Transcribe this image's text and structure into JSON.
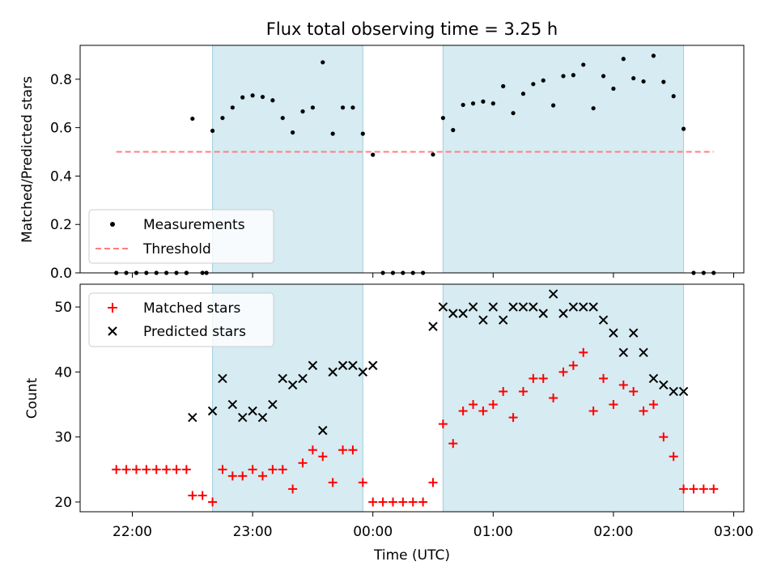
{
  "chart_data": {
    "type": "scatter",
    "title": "Flux total observing time = 3.25 h",
    "xlabel": "Time (UTC)",
    "x_ticks": [
      "22:00",
      "23:00",
      "00:00",
      "01:00",
      "02:00",
      "03:00"
    ],
    "shaded_intervals": [
      [
        "22:40",
        "23:55"
      ],
      [
        "00:35",
        "02:35"
      ]
    ],
    "threshold": {
      "name": "Threshold",
      "value": 0.5,
      "x_range": [
        "21:52",
        "02:50"
      ],
      "color": "#ff7f7f"
    },
    "panels": [
      {
        "ylabel": "Matched/Predicted stars",
        "ylim": [
          0,
          0.94
        ],
        "y_ticks": [
          "0.0",
          "0.2",
          "0.4",
          "0.6",
          "0.8"
        ],
        "legend_position": "lower-left",
        "series": [
          {
            "name": "Measurements",
            "marker": "dot",
            "color": "#000000",
            "points": [
              [
                "21:52",
                0.0
              ],
              [
                "21:57",
                0.0
              ],
              [
                "22:02",
                0.0
              ],
              [
                "22:07",
                0.0
              ],
              [
                "22:12",
                0.0
              ],
              [
                "22:17",
                0.0
              ],
              [
                "22:22",
                0.0
              ],
              [
                "22:27",
                0.0
              ],
              [
                "22:37",
                0.0
              ],
              [
                "22:27",
                0.0
              ],
              [
                "22:30",
                0.637
              ],
              [
                "22:35",
                0.0
              ],
              [
                "22:40",
                0.587
              ],
              [
                "22:45",
                0.64
              ],
              [
                "22:50",
                0.683
              ],
              [
                "22:55",
                0.725
              ],
              [
                "23:00",
                0.733
              ],
              [
                "23:05",
                0.727
              ],
              [
                "23:10",
                0.713
              ],
              [
                "23:15",
                0.64
              ],
              [
                "23:20",
                0.58
              ],
              [
                "23:25",
                0.667
              ],
              [
                "23:30",
                0.683
              ],
              [
                "23:35",
                0.87
              ],
              [
                "23:40",
                0.575
              ],
              [
                "23:45",
                0.683
              ],
              [
                "23:50",
                0.683
              ],
              [
                "23:55",
                0.575
              ],
              [
                "00:00",
                0.488
              ],
              [
                "00:05",
                0.0
              ],
              [
                "00:10",
                0.0
              ],
              [
                "00:15",
                0.0
              ],
              [
                "00:20",
                0.0
              ],
              [
                "00:25",
                0.0
              ],
              [
                "00:30",
                0.489
              ],
              [
                "00:35",
                0.64
              ],
              [
                "00:40",
                0.59
              ],
              [
                "00:45",
                0.694
              ],
              [
                "00:50",
                0.7
              ],
              [
                "00:55",
                0.708
              ],
              [
                "01:00",
                0.7
              ],
              [
                "01:05",
                0.771
              ],
              [
                "01:10",
                0.66
              ],
              [
                "01:15",
                0.74
              ],
              [
                "01:20",
                0.78
              ],
              [
                "01:25",
                0.795
              ],
              [
                "01:30",
                0.692
              ],
              [
                "01:35",
                0.813
              ],
              [
                "01:40",
                0.817
              ],
              [
                "01:45",
                0.86
              ],
              [
                "01:50",
                0.68
              ],
              [
                "01:55",
                0.813
              ],
              [
                "02:00",
                0.761
              ],
              [
                "02:05",
                0.884
              ],
              [
                "02:10",
                0.804
              ],
              [
                "02:15",
                0.791
              ],
              [
                "02:20",
                0.897
              ],
              [
                "02:25",
                0.789
              ],
              [
                "02:30",
                0.73
              ],
              [
                "02:35",
                0.595
              ],
              [
                "02:40",
                0.0
              ],
              [
                "02:45",
                0.0
              ],
              [
                "02:50",
                0.0
              ]
            ]
          }
        ]
      },
      {
        "ylabel": "Count",
        "ylim": [
          18.5,
          53.5
        ],
        "y_ticks": [
          "20",
          "30",
          "40",
          "50"
        ],
        "legend_position": "upper-left",
        "series": [
          {
            "name": "Matched stars",
            "marker": "plus",
            "color": "#ff0000",
            "points": [
              [
                "21:52",
                25
              ],
              [
                "21:57",
                25
              ],
              [
                "22:02",
                25
              ],
              [
                "22:07",
                25
              ],
              [
                "22:12",
                25
              ],
              [
                "22:17",
                25
              ],
              [
                "22:22",
                25
              ],
              [
                "22:27",
                25
              ],
              [
                "22:30",
                21
              ],
              [
                "22:35",
                21
              ],
              [
                "22:40",
                20
              ],
              [
                "22:45",
                25
              ],
              [
                "22:50",
                24
              ],
              [
                "22:55",
                24
              ],
              [
                "23:00",
                25
              ],
              [
                "23:05",
                24
              ],
              [
                "23:10",
                25
              ],
              [
                "23:15",
                25
              ],
              [
                "23:20",
                22
              ],
              [
                "23:25",
                26
              ],
              [
                "23:30",
                28
              ],
              [
                "23:35",
                27
              ],
              [
                "23:40",
                23
              ],
              [
                "23:45",
                28
              ],
              [
                "23:50",
                28
              ],
              [
                "23:55",
                23
              ],
              [
                "00:00",
                20
              ],
              [
                "00:05",
                20
              ],
              [
                "00:10",
                20
              ],
              [
                "00:15",
                20
              ],
              [
                "00:20",
                20
              ],
              [
                "00:25",
                20
              ],
              [
                "00:30",
                23
              ],
              [
                "00:35",
                32
              ],
              [
                "00:40",
                29
              ],
              [
                "00:45",
                34
              ],
              [
                "00:50",
                35
              ],
              [
                "00:55",
                34
              ],
              [
                "01:00",
                35
              ],
              [
                "01:05",
                37
              ],
              [
                "01:10",
                33
              ],
              [
                "01:15",
                37
              ],
              [
                "01:20",
                39
              ],
              [
                "01:25",
                39
              ],
              [
                "01:30",
                36
              ],
              [
                "01:35",
                40
              ],
              [
                "01:40",
                41
              ],
              [
                "01:45",
                43
              ],
              [
                "01:50",
                34
              ],
              [
                "01:55",
                39
              ],
              [
                "02:00",
                35
              ],
              [
                "02:05",
                38
              ],
              [
                "02:10",
                37
              ],
              [
                "02:15",
                34
              ],
              [
                "02:20",
                35
              ],
              [
                "02:25",
                30
              ],
              [
                "02:30",
                27
              ],
              [
                "02:35",
                22
              ],
              [
                "02:40",
                22
              ],
              [
                "02:45",
                22
              ],
              [
                "02:50",
                22
              ]
            ]
          },
          {
            "name": "Predicted stars",
            "marker": "x",
            "color": "#000000",
            "points": [
              [
                "22:30",
                33
              ],
              [
                "22:40",
                34
              ],
              [
                "22:45",
                39
              ],
              [
                "22:50",
                35
              ],
              [
                "22:55",
                33
              ],
              [
                "23:00",
                34
              ],
              [
                "23:05",
                33
              ],
              [
                "23:10",
                35
              ],
              [
                "23:15",
                39
              ],
              [
                "23:20",
                38
              ],
              [
                "23:25",
                39
              ],
              [
                "23:30",
                41
              ],
              [
                "23:35",
                31
              ],
              [
                "23:40",
                40
              ],
              [
                "23:45",
                41
              ],
              [
                "23:50",
                41
              ],
              [
                "23:55",
                40
              ],
              [
                "00:00",
                41
              ],
              [
                "00:30",
                47
              ],
              [
                "00:35",
                50
              ],
              [
                "00:40",
                49
              ],
              [
                "00:45",
                49
              ],
              [
                "00:50",
                50
              ],
              [
                "00:55",
                48
              ],
              [
                "01:00",
                50
              ],
              [
                "01:05",
                48
              ],
              [
                "01:10",
                50
              ],
              [
                "01:15",
                50
              ],
              [
                "01:20",
                50
              ],
              [
                "01:25",
                49
              ],
              [
                "01:30",
                52
              ],
              [
                "01:35",
                49
              ],
              [
                "01:40",
                50
              ],
              [
                "01:45",
                50
              ],
              [
                "01:50",
                50
              ],
              [
                "01:55",
                48
              ],
              [
                "02:00",
                46
              ],
              [
                "02:05",
                43
              ],
              [
                "02:10",
                46
              ],
              [
                "02:15",
                43
              ],
              [
                "02:20",
                39
              ],
              [
                "02:25",
                38
              ],
              [
                "02:30",
                37
              ],
              [
                "02:35",
                37
              ]
            ]
          }
        ]
      }
    ]
  }
}
